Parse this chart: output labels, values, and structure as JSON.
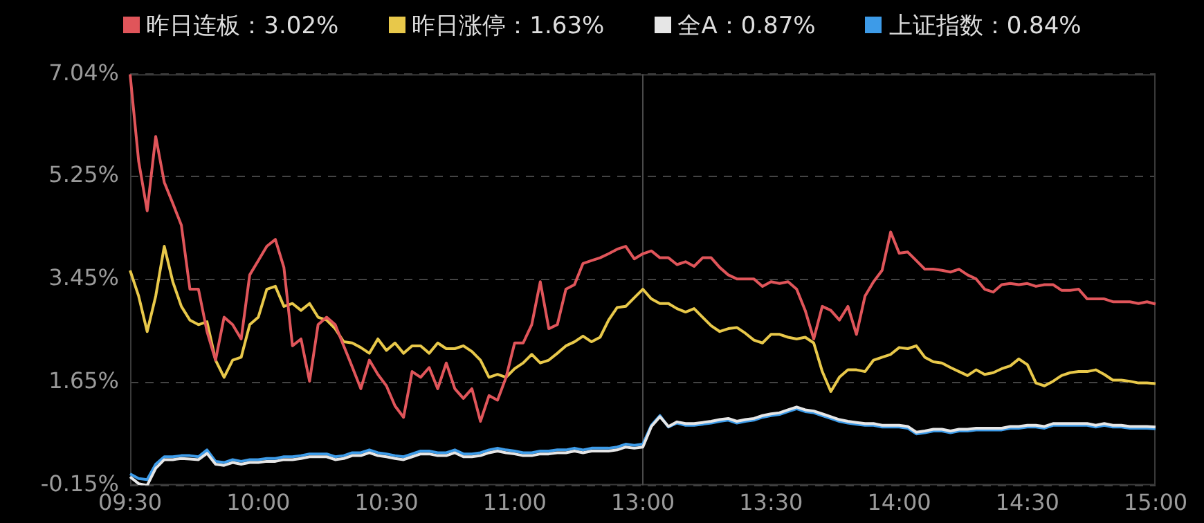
{
  "chart_data": {
    "type": "line",
    "legend": "top",
    "grid": "y",
    "marker": "none",
    "line_style": "solid",
    "categories": [
      "09:30",
      null,
      null,
      null,
      null,
      null,
      null,
      null,
      null,
      null,
      null,
      null,
      null,
      null,
      null,
      "10:00",
      null,
      null,
      null,
      null,
      null,
      null,
      null,
      null,
      null,
      null,
      null,
      null,
      null,
      null,
      "10:30",
      null,
      null,
      null,
      null,
      null,
      null,
      null,
      null,
      null,
      null,
      null,
      null,
      null,
      null,
      "11:00",
      null,
      null,
      null,
      null,
      null,
      null,
      null,
      null,
      null,
      null,
      null,
      null,
      null,
      null,
      "13:00",
      null,
      null,
      null,
      null,
      null,
      null,
      null,
      null,
      null,
      null,
      null,
      null,
      null,
      null,
      "13:30",
      null,
      null,
      null,
      null,
      null,
      null,
      null,
      null,
      null,
      null,
      null,
      null,
      null,
      null,
      "14:00",
      null,
      null,
      null,
      null,
      null,
      null,
      null,
      null,
      null,
      null,
      null,
      null,
      null,
      null,
      "14:30",
      null,
      null,
      null,
      null,
      null,
      null,
      null,
      null,
      null,
      null,
      null,
      null,
      null,
      null,
      "15:00"
    ],
    "ylim": [
      -0.15,
      7.04
    ],
    "yticks": [
      {
        "value": -0.15,
        "label": "-0.15%"
      },
      {
        "value": 1.65,
        "label": "1.65%"
      },
      {
        "value": 3.45,
        "label": "3.45%"
      },
      {
        "value": 5.25,
        "label": "5.25%"
      },
      {
        "value": 7.04,
        "label": "7.04%"
      }
    ],
    "ref_lines": [
      {
        "axis": "x",
        "value": "13:00",
        "color": "#4a4a4a",
        "line_style": "solid"
      }
    ],
    "series": [
      {
        "name": "昨日连板：3.02%",
        "color": "#e0555a",
        "values": [
          7.04,
          5.52,
          4.65,
          5.95,
          5.15,
          4.78,
          4.4,
          3.28,
          3.28,
          2.54,
          2.04,
          2.79,
          2.66,
          2.41,
          3.53,
          3.78,
          4.03,
          4.15,
          3.66,
          2.29,
          2.41,
          1.67,
          2.66,
          2.79,
          2.66,
          2.29,
          1.92,
          1.54,
          2.04,
          1.79,
          1.59,
          1.24,
          1.04,
          1.84,
          1.74,
          1.91,
          1.54,
          1.99,
          1.54,
          1.37,
          1.54,
          0.97,
          1.42,
          1.34,
          1.74,
          2.34,
          2.34,
          2.66,
          3.41,
          2.59,
          2.66,
          3.28,
          3.36,
          3.73,
          3.78,
          3.83,
          3.9,
          3.98,
          4.03,
          3.81,
          3.9,
          3.95,
          3.83,
          3.83,
          3.71,
          3.76,
          3.68,
          3.83,
          3.83,
          3.66,
          3.53,
          3.46,
          3.46,
          3.46,
          3.33,
          3.41,
          3.38,
          3.41,
          3.28,
          2.91,
          2.41,
          2.98,
          2.91,
          2.74,
          2.98,
          2.49,
          3.16,
          3.41,
          3.61,
          4.28,
          3.91,
          3.93,
          3.78,
          3.63,
          3.63,
          3.61,
          3.58,
          3.63,
          3.53,
          3.46,
          3.28,
          3.23,
          3.36,
          3.38,
          3.36,
          3.38,
          3.33,
          3.36,
          3.36,
          3.26,
          3.26,
          3.28,
          3.11,
          3.11,
          3.11,
          3.06,
          3.06,
          3.06,
          3.03,
          3.06,
          3.02
        ]
      },
      {
        "name": "昨日涨停：1.63%",
        "color": "#e8c84a",
        "values": [
          3.61,
          3.16,
          2.54,
          3.16,
          4.03,
          3.41,
          2.98,
          2.74,
          2.66,
          2.71,
          2.04,
          1.74,
          2.04,
          2.09,
          2.66,
          2.79,
          3.28,
          3.33,
          2.98,
          3.03,
          2.91,
          3.03,
          2.79,
          2.74,
          2.59,
          2.36,
          2.34,
          2.26,
          2.16,
          2.41,
          2.21,
          2.34,
          2.16,
          2.29,
          2.29,
          2.16,
          2.34,
          2.24,
          2.24,
          2.29,
          2.19,
          2.04,
          1.74,
          1.79,
          1.74,
          1.89,
          1.99,
          2.14,
          1.99,
          2.04,
          2.16,
          2.29,
          2.36,
          2.46,
          2.36,
          2.44,
          2.74,
          2.96,
          2.98,
          3.13,
          3.28,
          3.11,
          3.03,
          3.03,
          2.94,
          2.88,
          2.94,
          2.79,
          2.64,
          2.54,
          2.59,
          2.61,
          2.51,
          2.39,
          2.34,
          2.49,
          2.49,
          2.44,
          2.41,
          2.44,
          2.34,
          1.84,
          1.49,
          1.74,
          1.87,
          1.87,
          1.84,
          2.04,
          2.09,
          2.14,
          2.26,
          2.24,
          2.29,
          2.09,
          2.01,
          1.99,
          1.91,
          1.84,
          1.77,
          1.87,
          1.79,
          1.82,
          1.89,
          1.94,
          2.06,
          1.96,
          1.64,
          1.59,
          1.67,
          1.77,
          1.82,
          1.84,
          1.84,
          1.87,
          1.79,
          1.69,
          1.69,
          1.67,
          1.64,
          1.64,
          1.63
        ]
      },
      {
        "name": "全A：0.87%",
        "color": "#e6e6e6",
        "values": [
          0.0,
          -0.12,
          -0.15,
          0.15,
          0.3,
          0.3,
          0.32,
          0.31,
          0.3,
          0.41,
          0.22,
          0.2,
          0.25,
          0.22,
          0.25,
          0.25,
          0.27,
          0.27,
          0.3,
          0.3,
          0.32,
          0.35,
          0.35,
          0.35,
          0.3,
          0.32,
          0.37,
          0.37,
          0.42,
          0.37,
          0.35,
          0.32,
          0.3,
          0.35,
          0.4,
          0.4,
          0.37,
          0.37,
          0.42,
          0.35,
          0.35,
          0.37,
          0.42,
          0.45,
          0.42,
          0.4,
          0.37,
          0.37,
          0.4,
          0.4,
          0.42,
          0.42,
          0.45,
          0.42,
          0.45,
          0.45,
          0.45,
          0.47,
          0.52,
          0.5,
          0.52,
          0.88,
          1.05,
          0.88,
          0.96,
          0.93,
          0.93,
          0.95,
          0.97,
          1.0,
          1.02,
          0.97,
          1.0,
          1.02,
          1.07,
          1.1,
          1.12,
          1.17,
          1.22,
          1.17,
          1.15,
          1.1,
          1.05,
          1.0,
          0.97,
          0.95,
          0.93,
          0.93,
          0.9,
          0.9,
          0.9,
          0.88,
          0.78,
          0.8,
          0.83,
          0.83,
          0.8,
          0.83,
          0.83,
          0.85,
          0.85,
          0.85,
          0.85,
          0.88,
          0.88,
          0.9,
          0.9,
          0.88,
          0.93,
          0.93,
          0.93,
          0.93,
          0.93,
          0.9,
          0.93,
          0.9,
          0.9,
          0.88,
          0.88,
          0.88,
          0.87
        ]
      },
      {
        "name": "上证指数：0.84%",
        "color": "#3d9be8",
        "values": [
          0.05,
          -0.03,
          -0.05,
          0.22,
          0.35,
          0.35,
          0.37,
          0.37,
          0.35,
          0.47,
          0.27,
          0.25,
          0.3,
          0.27,
          0.3,
          0.3,
          0.32,
          0.32,
          0.35,
          0.35,
          0.37,
          0.4,
          0.4,
          0.4,
          0.35,
          0.37,
          0.42,
          0.42,
          0.47,
          0.42,
          0.4,
          0.37,
          0.35,
          0.4,
          0.45,
          0.45,
          0.42,
          0.42,
          0.47,
          0.4,
          0.4,
          0.42,
          0.47,
          0.5,
          0.47,
          0.45,
          0.42,
          0.42,
          0.45,
          0.45,
          0.47,
          0.47,
          0.5,
          0.47,
          0.5,
          0.5,
          0.5,
          0.52,
          0.57,
          0.55,
          0.57,
          0.9,
          1.07,
          0.87,
          0.94,
          0.9,
          0.9,
          0.92,
          0.94,
          0.97,
          0.99,
          0.94,
          0.97,
          0.99,
          1.04,
          1.07,
          1.09,
          1.14,
          1.19,
          1.14,
          1.12,
          1.07,
          1.02,
          0.97,
          0.94,
          0.92,
          0.9,
          0.9,
          0.87,
          0.87,
          0.87,
          0.85,
          0.75,
          0.77,
          0.8,
          0.8,
          0.77,
          0.8,
          0.8,
          0.82,
          0.82,
          0.82,
          0.82,
          0.85,
          0.85,
          0.87,
          0.87,
          0.85,
          0.9,
          0.9,
          0.9,
          0.9,
          0.9,
          0.87,
          0.9,
          0.87,
          0.87,
          0.85,
          0.85,
          0.85,
          0.84
        ]
      }
    ]
  }
}
